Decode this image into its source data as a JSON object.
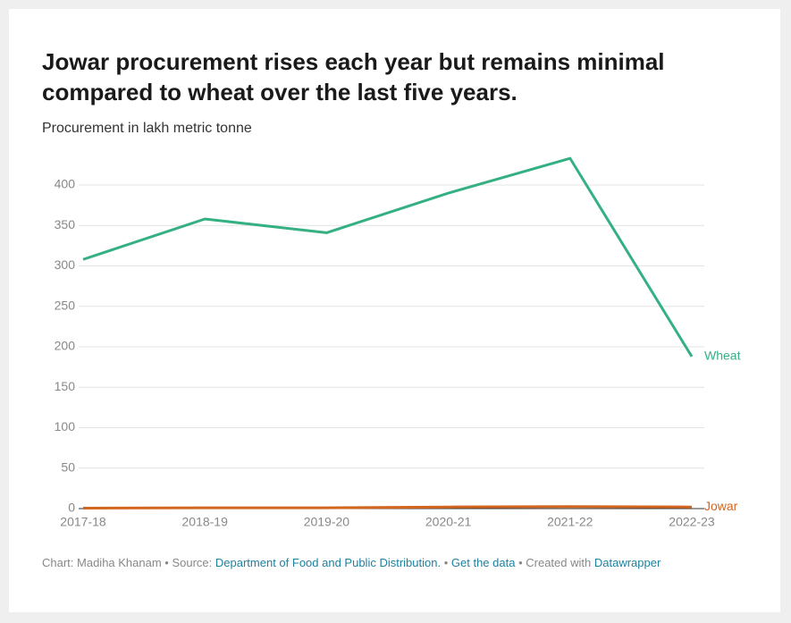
{
  "chart_data": {
    "type": "line",
    "title": "Jowar procurement rises each year but remains minimal compared to wheat over the last five years.",
    "subtitle": "Procurement in lakh metric tonne",
    "categories": [
      "2017-18",
      "2018-19",
      "2019-20",
      "2020-21",
      "2021-22",
      "2022-23"
    ],
    "series": [
      {
        "name": "Wheat",
        "color": "#35b083",
        "values": [
          308,
          358,
          341,
          390,
          433,
          188
        ]
      },
      {
        "name": "Jowar",
        "color": "#d3661f",
        "values": [
          0.5,
          1,
          1,
          2,
          2.5,
          2
        ]
      }
    ],
    "ylim": [
      0,
      400
    ],
    "yticks": [
      0,
      50,
      100,
      150,
      200,
      250,
      300,
      350,
      400
    ],
    "grid": true
  },
  "footer": {
    "prefix": "Chart: Madiha Khanam • Source:",
    "source": "Department of Food and Public Distribution.",
    "sep1": "•",
    "data_link": "Get the data",
    "created": "• Created with",
    "tool": "Datawrapper"
  }
}
